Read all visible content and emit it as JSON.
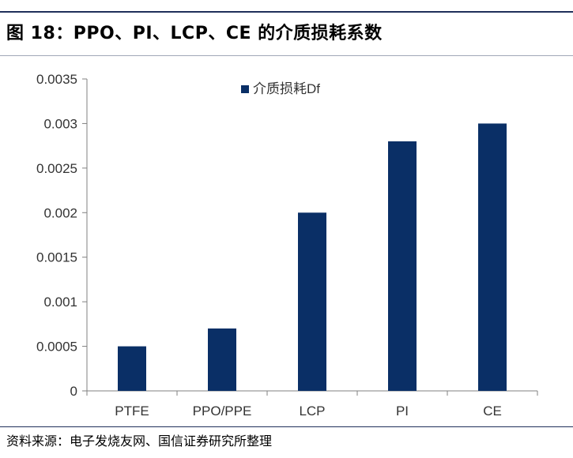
{
  "figure_title": "图 18：PPO、PI、LCP、CE 的介质损耗系数",
  "source_note": "资料来源：电子发烧友网、国信证券研究所整理",
  "chart_data": {
    "type": "bar",
    "categories": [
      "PTFE",
      "PPO/PPE",
      "LCP",
      "PI",
      "CE"
    ],
    "series": [
      {
        "name": "介质损耗Df",
        "values": [
          0.0005,
          0.0007,
          0.002,
          0.0028,
          0.003
        ]
      }
    ],
    "ylim": [
      0,
      0.0035
    ],
    "yticks": [
      "0",
      "0.0005",
      "0.001",
      "0.0015",
      "0.002",
      "0.0025",
      "0.003",
      "0.0035"
    ],
    "title": "",
    "xlabel": "",
    "ylabel": "",
    "grid": false,
    "legend_position": "top-center",
    "colors": {
      "bar": "#0a2f66",
      "axis": "#808080"
    }
  }
}
